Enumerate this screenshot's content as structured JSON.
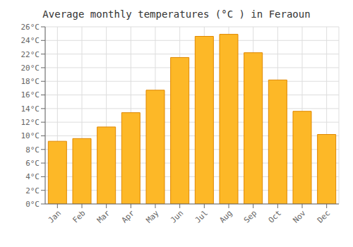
{
  "chart_data": {
    "type": "bar",
    "title": "Average monthly temperatures (°C ) in Feraoun",
    "categories": [
      "Jan",
      "Feb",
      "Mar",
      "Apr",
      "May",
      "Jun",
      "Jul",
      "Aug",
      "Sep",
      "Oct",
      "Nov",
      "Dec"
    ],
    "values": [
      9.2,
      9.6,
      11.3,
      13.4,
      16.7,
      21.5,
      24.6,
      24.9,
      22.2,
      18.2,
      13.6,
      10.2
    ],
    "color": "#FDB827",
    "ylim": [
      0,
      26
    ],
    "yticks": [
      {
        "value": 0,
        "label": "0°C"
      },
      {
        "value": 2,
        "label": "2°C"
      },
      {
        "value": 4,
        "label": "4°C"
      },
      {
        "value": 6,
        "label": "6°C"
      },
      {
        "value": 8,
        "label": "8°C"
      },
      {
        "value": 10,
        "label": "10°C"
      },
      {
        "value": 12,
        "label": "12°C"
      },
      {
        "value": 14,
        "label": "14°C"
      },
      {
        "value": 16,
        "label": "16°C"
      },
      {
        "value": 18,
        "label": "18°C"
      },
      {
        "value": 20,
        "label": "20°C"
      },
      {
        "value": 22,
        "label": "22°C"
      },
      {
        "value": 24,
        "label": "24°C"
      },
      {
        "value": 26,
        "label": "26°C"
      }
    ],
    "grid": true
  }
}
